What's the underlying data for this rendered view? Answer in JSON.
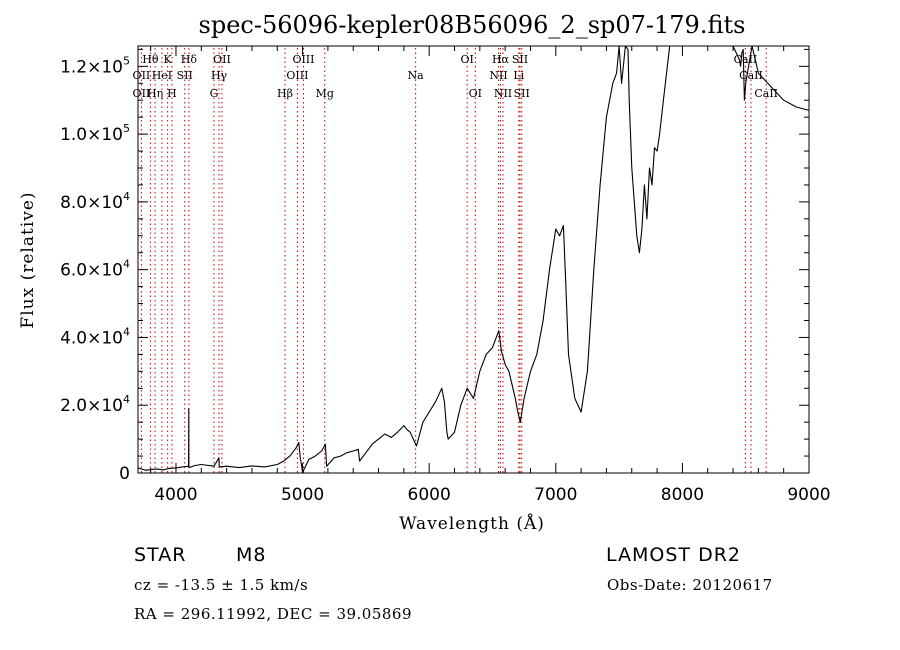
{
  "chart_data": {
    "type": "line",
    "title": "spec-56096-kepler08B56096_2_sp07-179.fits",
    "xlabel": "Wavelength (Å)",
    "ylabel": "Flux (relative)",
    "xlim": [
      3700,
      9000
    ],
    "ylim": [
      0,
      126000
    ],
    "x_ticks": [
      4000,
      5000,
      6000,
      7000,
      8000,
      9000
    ],
    "x_tick_labels": [
      "4000",
      "5000",
      "6000",
      "7000",
      "8000",
      "9000"
    ],
    "y_ticks": [
      {
        "value": 0,
        "mantissa": "0",
        "exp": ""
      },
      {
        "value": 20000,
        "mantissa": "2.0×10",
        "exp": "4"
      },
      {
        "value": 40000,
        "mantissa": "4.0×10",
        "exp": "4"
      },
      {
        "value": 60000,
        "mantissa": "6.0×10",
        "exp": "4"
      },
      {
        "value": 80000,
        "mantissa": "8.0×10",
        "exp": "4"
      },
      {
        "value": 100000,
        "mantissa": "1.0×10",
        "exp": "5"
      },
      {
        "value": 120000,
        "mantissa": "1.2×10",
        "exp": "5"
      }
    ],
    "series": [
      {
        "x": [
          3700,
          3760,
          3800,
          3850,
          3900,
          3950,
          4000,
          4050,
          4100,
          4101,
          4102,
          4150,
          4200,
          4300,
          4340,
          4341,
          4400,
          4500,
          4600,
          4700,
          4800,
          4850,
          4900,
          4950,
          4970,
          4980,
          5000,
          5050,
          5100,
          5150,
          5180,
          5190,
          5250,
          5300,
          5350,
          5400,
          5440,
          5450,
          5500,
          5550,
          5600,
          5650,
          5700,
          5750,
          5800,
          5820,
          5850,
          5900,
          5950,
          6000,
          6050,
          6100,
          6120,
          6140,
          6150,
          6200,
          6250,
          6300,
          6350,
          6400,
          6450,
          6500,
          6550,
          6570,
          6600,
          6630,
          6680,
          6700,
          6720,
          6750,
          6800,
          6850,
          6900,
          6950,
          7000,
          7030,
          7060,
          7080,
          7100,
          7150,
          7200,
          7250,
          7300,
          7350,
          7400,
          7450,
          7480,
          7500,
          7520,
          7550,
          7570,
          7580,
          7600,
          7620,
          7640,
          7660,
          7680,
          7700,
          7720,
          7740,
          7760,
          7780,
          7800,
          7820,
          7850,
          7900,
          7950,
          8000,
          8100,
          8200,
          8300,
          8400,
          8450,
          8460,
          8470,
          8480,
          8490,
          8500,
          8550,
          8600,
          8700,
          8800,
          8900,
          9000
        ],
        "y": [
          1500,
          800,
          1000,
          1200,
          900,
          1400,
          1500,
          1800,
          2000,
          19000,
          1600,
          2200,
          2500,
          2000,
          4500,
          1800,
          2000,
          1600,
          2100,
          1800,
          2500,
          3500,
          5000,
          7500,
          9000,
          5000,
          200,
          4000,
          5000,
          6500,
          8500,
          2000,
          4500,
          5000,
          6000,
          6500,
          7000,
          3500,
          6000,
          8500,
          10000,
          11500,
          10500,
          12000,
          14000,
          13000,
          12000,
          8000,
          15000,
          18000,
          21000,
          25000,
          21000,
          12000,
          10000,
          12000,
          20000,
          25000,
          22000,
          30000,
          35000,
          37000,
          42000,
          36000,
          32000,
          30000,
          22000,
          18000,
          15000,
          22000,
          30000,
          35000,
          45000,
          60000,
          72000,
          70000,
          73000,
          55000,
          35000,
          22000,
          18000,
          30000,
          60000,
          85000,
          105000,
          115000,
          118000,
          126000,
          115000,
          126000,
          125000,
          110000,
          90000,
          80000,
          70000,
          65000,
          72000,
          85000,
          75000,
          90000,
          85000,
          96000,
          95000,
          100000,
          110000,
          126000,
          126000,
          126000,
          126000,
          126000,
          126000,
          126000,
          122000,
          120000,
          124000,
          125000,
          110000,
          115000,
          126000,
          118000,
          114000,
          110000,
          108000,
          107000
        ]
      }
    ],
    "line_labels": [
      {
        "label": "Hθ",
        "x": 3798,
        "row": 0
      },
      {
        "label": "K",
        "x": 3934,
        "row": 0
      },
      {
        "label": "Hδ",
        "x": 4102,
        "row": 0
      },
      {
        "label": "OII",
        "x": 4363,
        "row": 0
      },
      {
        "label": "OIII",
        "x": 5007,
        "row": 0
      },
      {
        "label": "OI",
        "x": 6300,
        "row": 0
      },
      {
        "label": "Hα",
        "x": 6563,
        "row": 0
      },
      {
        "label": "SII",
        "x": 6717,
        "row": 0
      },
      {
        "label": "CaII",
        "x": 8498,
        "row": 0
      },
      {
        "label": "OII",
        "x": 3727,
        "row": 1
      },
      {
        "label": "HeI",
        "x": 3889,
        "row": 1
      },
      {
        "label": "SII",
        "x": 4069,
        "row": 1
      },
      {
        "label": "Hγ",
        "x": 4340,
        "row": 1
      },
      {
        "label": "OIII",
        "x": 4959,
        "row": 1
      },
      {
        "label": "Na",
        "x": 5893,
        "row": 1
      },
      {
        "label": "NII",
        "x": 6548,
        "row": 1
      },
      {
        "label": "Li",
        "x": 6708,
        "row": 1
      },
      {
        "label": "CaII",
        "x": 8542,
        "row": 1
      },
      {
        "label": "OII",
        "x": 3727,
        "row": 2
      },
      {
        "label": "Hη",
        "x": 3835,
        "row": 2
      },
      {
        "label": "H",
        "x": 3968,
        "row": 2
      },
      {
        "label": "G",
        "x": 4300,
        "row": 2
      },
      {
        "label": "Hβ",
        "x": 4861,
        "row": 2
      },
      {
        "label": "Mg",
        "x": 5175,
        "row": 2
      },
      {
        "label": "OI",
        "x": 6364,
        "row": 2
      },
      {
        "label": "NII",
        "x": 6583,
        "row": 2
      },
      {
        "label": "SII",
        "x": 6731,
        "row": 2
      },
      {
        "label": "CaII",
        "x": 8662,
        "row": 2
      }
    ],
    "grid": false
  },
  "info": {
    "object_type": "STAR",
    "subclass": "M8",
    "cz": "cz = -13.5 ± 1.5 km/s",
    "coords": "RA = 296.11992, DEC =  39.05869",
    "survey": "LAMOST DR2",
    "obs_date": "Obs-Date: 20120617"
  },
  "colors": {
    "spectrum": "#000000",
    "marker_lines": "#cc0000"
  }
}
